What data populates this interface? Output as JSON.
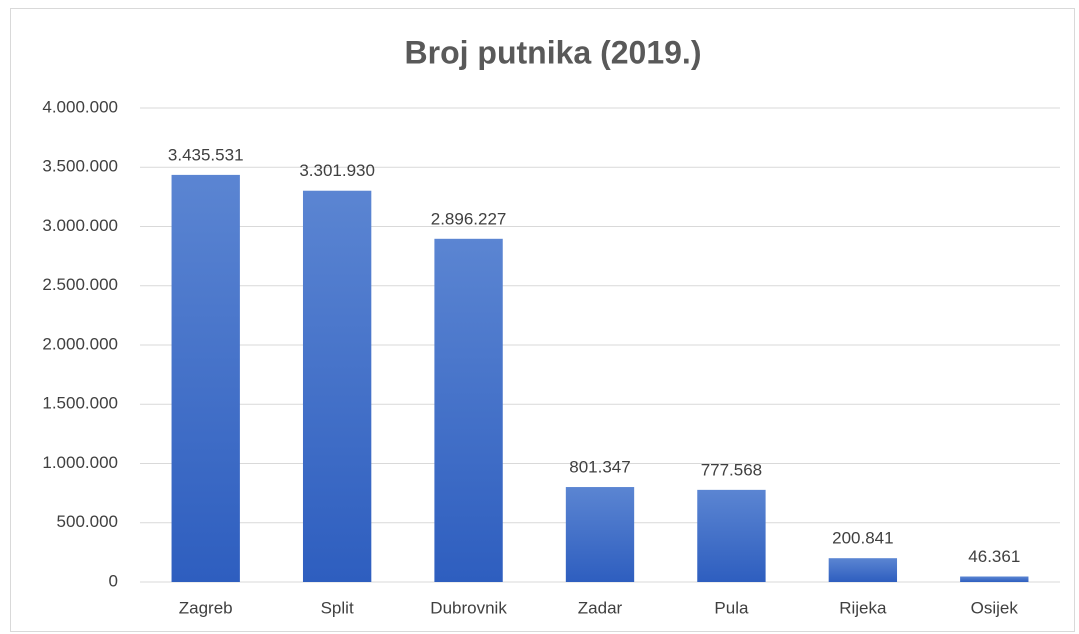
{
  "chart_data": {
    "type": "bar",
    "title": "Broj putnika (2019.)",
    "categories": [
      "Zagreb",
      "Split",
      "Dubrovnik",
      "Zadar",
      "Pula",
      "Rijeka",
      "Osijek"
    ],
    "values": [
      3435531,
      3301930,
      2896227,
      801347,
      777568,
      200841,
      46361
    ],
    "value_labels": [
      "3.435.531",
      "3.301.930",
      "2.896.227",
      "801.347",
      "777.568",
      "200.841",
      "46.361"
    ],
    "color": "#4472c4",
    "ylim": [
      0,
      4000000
    ],
    "yticks": [
      0,
      {
        "value": 500000,
        "label": "500.000"
      },
      {
        "value": 1000000,
        "label": "1.000.000"
      },
      {
        "value": 1500000,
        "label": "1.500.000"
      },
      {
        "value": 2000000,
        "label": "2.000.000"
      },
      {
        "value": 2500000,
        "label": "2.500.000"
      },
      {
        "value": 3000000,
        "label": "3.000.000"
      },
      {
        "value": 3500000,
        "label": "3.500.000"
      },
      {
        "value": 4000000,
        "label": "4.000.000"
      }
    ],
    "grid": true
  }
}
